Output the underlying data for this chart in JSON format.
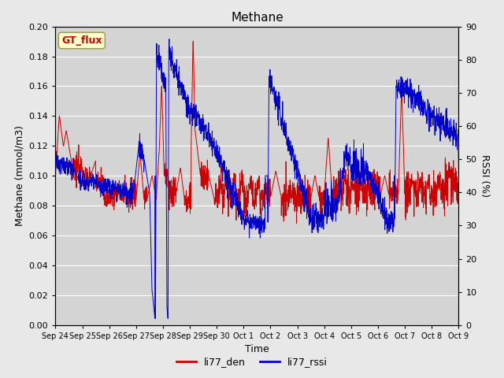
{
  "title": "Methane",
  "xlabel": "Time",
  "ylabel_left": "Methane (mmol/m3)",
  "ylabel_right": "RSSI (%)",
  "legend_label1": "li77_den",
  "legend_label2": "li77_rssi",
  "annotation_text": "GT_flux",
  "ylim_left": [
    0.0,
    0.2
  ],
  "ylim_right": [
    0,
    90
  ],
  "yticks_left": [
    0.0,
    0.02,
    0.04,
    0.06,
    0.08,
    0.1,
    0.12,
    0.14,
    0.16,
    0.18,
    0.2
  ],
  "yticks_right": [
    0,
    10,
    20,
    30,
    40,
    50,
    60,
    70,
    80,
    90
  ],
  "color_den": "#cc0000",
  "color_rssi": "#0000cc",
  "bg_color": "#e8e8e8",
  "plot_bg_color": "#d4d4d4",
  "grid_color": "#ffffff",
  "title_fontsize": 11,
  "label_fontsize": 9,
  "tick_fontsize": 8,
  "xtick_labels": [
    "Sep 24",
    "Sep 25",
    "Sep 26",
    "Sep 27",
    "Sep 28",
    "Sep 29",
    "Sep 30",
    "Oct 1",
    "Oct 2",
    "Oct 3",
    "Oct 4",
    "Oct 5",
    "Oct 6",
    "Oct 7",
    "Oct 8",
    "Oct 9"
  ]
}
